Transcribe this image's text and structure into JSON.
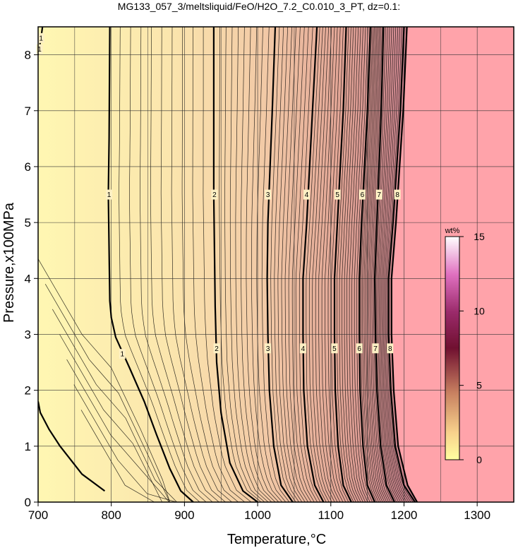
{
  "chart_data": {
    "type": "heatmap",
    "title": "MG133_057_3/meltsliquid/FeO/H2O_7.2_C0.010_3_PT, dz=0.1:",
    "xlabel": "Temperature,°C",
    "ylabel": "Pressure,x100MPa",
    "xlim": [
      700,
      1350
    ],
    "ylim": [
      0,
      8.5
    ],
    "x_ticks": [
      "700",
      "800",
      "900",
      "1000",
      "1100",
      "1200",
      "1300"
    ],
    "y_ticks": [
      "0",
      "1",
      "2",
      "3",
      "4",
      "5",
      "6",
      "7",
      "8"
    ],
    "grid": true,
    "z_unit": "wt%",
    "colorbar": {
      "min": 0,
      "max": 15,
      "ticks": [
        "0",
        "5",
        "10",
        "15"
      ],
      "label": "wt%",
      "colors": [
        "#ffffa0",
        "#f8d28c",
        "#c88060",
        "#701030",
        "#9a2a6a",
        "#e070c0",
        "#ffffff"
      ],
      "placement": "right-inside"
    },
    "above_liquidus_color": "#ffa3aa",
    "contour_interval": 0.1,
    "major_contours": [
      {
        "value": "1",
        "points": [
          [
            791,
            0.2
          ],
          [
            760,
            0.5
          ],
          [
            730,
            1.0
          ],
          [
            715,
            1.3
          ],
          [
            703,
            1.6
          ],
          [
            700,
            1.8
          ]
        ]
      },
      {
        "value": "1",
        "points": [
          [
            912,
            0
          ],
          [
            895,
            0.2
          ],
          [
            880,
            0.6
          ],
          [
            862,
            1.2
          ],
          [
            845,
            1.8
          ],
          [
            825,
            2.4
          ],
          [
            806,
            2.95
          ],
          [
            800,
            3.3
          ],
          [
            798,
            3.6
          ],
          [
            797,
            4.5
          ],
          [
            796,
            5.5
          ],
          [
            797,
            6.5
          ],
          [
            798,
            8.5
          ]
        ]
      },
      {
        "value": "1",
        "points": [
          [
            700,
            8.0
          ],
          [
            704,
            8.3
          ],
          [
            706,
            8.5
          ]
        ]
      },
      {
        "value": "2",
        "points": [
          [
            1000,
            0
          ],
          [
            980,
            0.2
          ],
          [
            962,
            0.7
          ],
          [
            950,
            1.6
          ],
          [
            944,
            2.5
          ],
          [
            942,
            3.5
          ],
          [
            941,
            4.5
          ],
          [
            940,
            5.5
          ],
          [
            940,
            7.0
          ],
          [
            940,
            8.5
          ]
        ]
      },
      {
        "value": "3",
        "points": [
          [
            1048,
            0
          ],
          [
            1032,
            0.3
          ],
          [
            1022,
            1.0
          ],
          [
            1016,
            2.0
          ],
          [
            1014,
            3.0
          ],
          [
            1013,
            4.0
          ],
          [
            1014,
            5.0
          ],
          [
            1017,
            6.0
          ],
          [
            1020,
            7.0
          ],
          [
            1024,
            8.5
          ]
        ]
      },
      {
        "value": "4",
        "points": [
          [
            1090,
            0
          ],
          [
            1078,
            0.3
          ],
          [
            1068,
            1.0
          ],
          [
            1063,
            2.0
          ],
          [
            1062,
            3.0
          ],
          [
            1062,
            4.0
          ],
          [
            1067,
            5.0
          ],
          [
            1071,
            6.0
          ],
          [
            1075,
            7.0
          ],
          [
            1081,
            8.5
          ]
        ]
      },
      {
        "value": "5",
        "points": [
          [
            1128,
            0
          ],
          [
            1117,
            0.3
          ],
          [
            1110,
            1.0
          ],
          [
            1106,
            2.0
          ],
          [
            1105,
            3.0
          ],
          [
            1105,
            4.0
          ],
          [
            1109,
            5.0
          ],
          [
            1113,
            6.0
          ],
          [
            1117,
            7.0
          ],
          [
            1121,
            8.5
          ]
        ]
      },
      {
        "value": "6",
        "points": [
          [
            1160,
            0
          ],
          [
            1150,
            0.3
          ],
          [
            1144,
            1.0
          ],
          [
            1140,
            2.0
          ],
          [
            1139,
            3.0
          ],
          [
            1139,
            4.0
          ],
          [
            1142,
            5.0
          ],
          [
            1146,
            6.0
          ],
          [
            1150,
            7.0
          ],
          [
            1154,
            8.5
          ]
        ]
      },
      {
        "value": "7",
        "points": [
          [
            1187,
            0
          ],
          [
            1176,
            0.3
          ],
          [
            1168,
            1.0
          ],
          [
            1163,
            2.0
          ],
          [
            1161,
            3.0
          ],
          [
            1160,
            4.0
          ],
          [
            1163,
            5.0
          ],
          [
            1166,
            6.0
          ],
          [
            1169,
            7.0
          ],
          [
            1172,
            8.5
          ]
        ]
      },
      {
        "value": "8",
        "points": [
          [
            1215,
            0
          ],
          [
            1200,
            0.3
          ],
          [
            1188,
            1.0
          ],
          [
            1182,
            2.0
          ],
          [
            1179,
            3.0
          ],
          [
            1179,
            4.0
          ],
          [
            1185,
            5.0
          ],
          [
            1190,
            6.0
          ],
          [
            1195,
            7.0
          ],
          [
            1200,
            8.5
          ]
        ]
      }
    ],
    "liquidus_boundary": [
      [
        1218,
        0
      ],
      [
        1205,
        0.3
      ],
      [
        1192,
        1.0
      ],
      [
        1186,
        2.0
      ],
      [
        1183,
        3.0
      ],
      [
        1183,
        4.0
      ],
      [
        1189,
        5.0
      ],
      [
        1194,
        6.0
      ],
      [
        1199,
        7.0
      ],
      [
        1204,
        8.5
      ]
    ],
    "contour_labels": [
      {
        "text": "1",
        "x": 797,
        "y": 5.5
      },
      {
        "text": "1",
        "x": 815,
        "y": 2.65
      },
      {
        "text": "1",
        "x": 702,
        "y": 8.1
      },
      {
        "text": "1",
        "x": 704,
        "y": 8.3
      },
      {
        "text": "2",
        "x": 941,
        "y": 5.5
      },
      {
        "text": "2",
        "x": 944,
        "y": 2.75
      },
      {
        "text": "3",
        "x": 1014,
        "y": 5.5
      },
      {
        "text": "3",
        "x": 1014,
        "y": 2.75
      },
      {
        "text": "4",
        "x": 1067,
        "y": 5.5
      },
      {
        "text": "4",
        "x": 1062,
        "y": 2.75
      },
      {
        "text": "5",
        "x": 1109,
        "y": 5.5
      },
      {
        "text": "5",
        "x": 1105,
        "y": 2.75
      },
      {
        "text": "6",
        "x": 1143,
        "y": 5.5
      },
      {
        "text": "6",
        "x": 1139,
        "y": 2.75
      },
      {
        "text": "7",
        "x": 1166,
        "y": 5.5
      },
      {
        "text": "7",
        "x": 1161,
        "y": 2.75
      },
      {
        "text": "8",
        "x": 1191,
        "y": 5.5
      },
      {
        "text": "8",
        "x": 1181,
        "y": 2.75
      }
    ]
  }
}
